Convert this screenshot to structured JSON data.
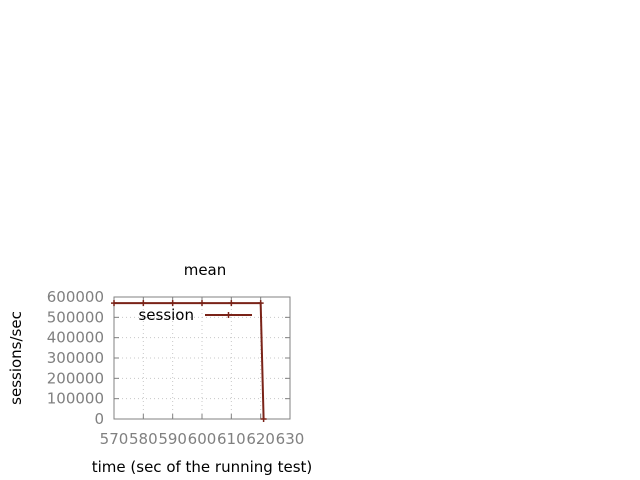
{
  "chart_data": {
    "type": "line",
    "title": "mean",
    "xlabel": "time (sec of the running test)",
    "ylabel": "sessions/sec",
    "xlim": [
      570,
      630
    ],
    "ylim": [
      0,
      600000
    ],
    "x_ticks": [
      "570",
      "580",
      "590",
      "600",
      "610",
      "620",
      "630"
    ],
    "y_ticks": [
      "0",
      "100000",
      "200000",
      "300000",
      "400000",
      "500000",
      "600000"
    ],
    "grid": true,
    "legend_position": "top-right",
    "series": [
      {
        "name": "session",
        "color": "#7a2318",
        "x": [
          570,
          580,
          590,
          600,
          610,
          620,
          621
        ],
        "y": [
          570000,
          570000,
          570000,
          570000,
          570000,
          570000,
          0
        ]
      }
    ]
  }
}
